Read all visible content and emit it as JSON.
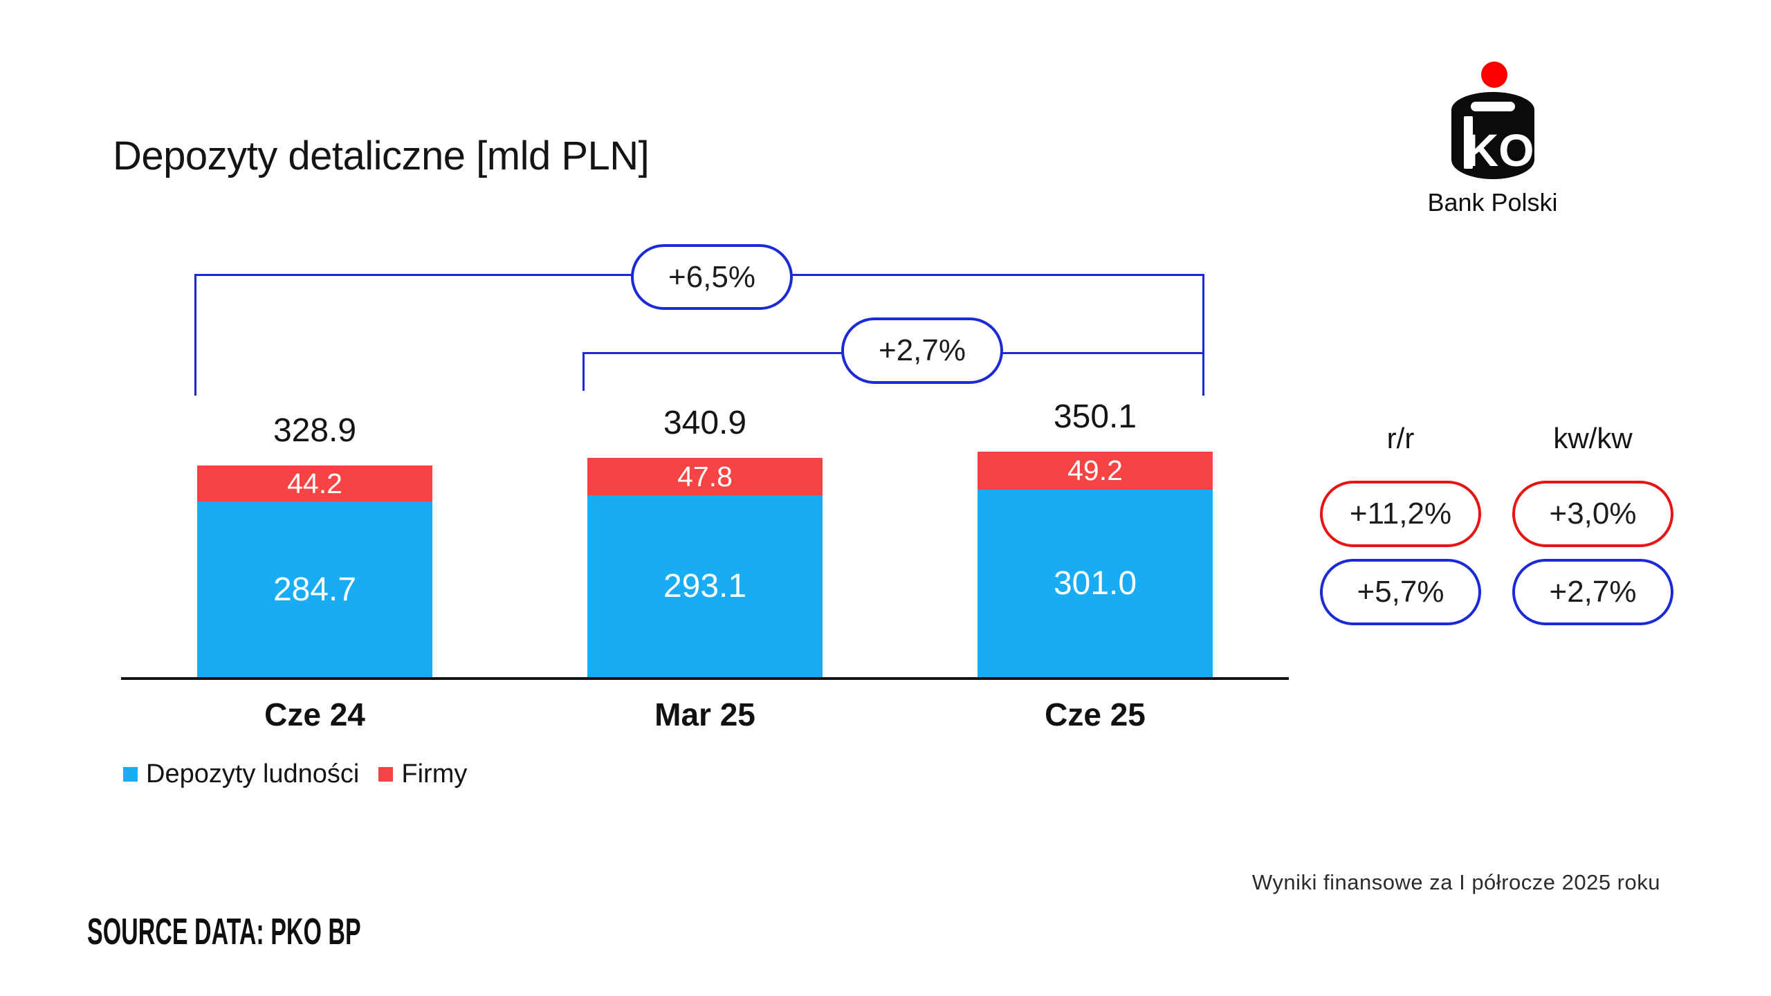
{
  "page": {
    "title": "Depozyty detaliczne [mld PLN]"
  },
  "logo": {
    "brand": "Bank Polski",
    "dot_color": "#fa0000",
    "body_color": "#0b0b0b"
  },
  "chart_data": {
    "type": "bar",
    "stacked": true,
    "title": "Depozyty detaliczne [mld PLN]",
    "unit": "mld PLN",
    "categories": [
      "Cze 24",
      "Mar 25",
      "Cze 25"
    ],
    "series": [
      {
        "name": "Depozyty ludności",
        "color": "#17acf3",
        "values": [
          284.7,
          293.1,
          301.0
        ]
      },
      {
        "name": "Firmy",
        "color": "#f64444",
        "values": [
          44.2,
          47.8,
          49.2
        ]
      }
    ],
    "totals": [
      "328.9",
      "340.9",
      "350.1"
    ],
    "annotations": [
      {
        "label": "+6,5%",
        "from": "Cze 24",
        "to": "Cze 25"
      },
      {
        "label": "+2,7%",
        "from": "Mar 25",
        "to": "Cze 25"
      }
    ],
    "legend_position": "bottom-left",
    "grid": false,
    "axis_color": "#121212",
    "bracket_color": "#1a2ad8"
  },
  "growth_panel": {
    "columns": [
      "r/r",
      "kw/kw"
    ],
    "rows": [
      {
        "style": "red",
        "color": "#e81414",
        "values": [
          "+11,2%",
          "+3,0%"
        ]
      },
      {
        "style": "blue",
        "color": "#1a2ad8",
        "values": [
          "+5,7%",
          "+2,7%"
        ]
      }
    ]
  },
  "footer": {
    "note": "Wyniki finansowe za I półrocze 2025 roku",
    "source": "SOURCE DATA: PKO BP"
  }
}
